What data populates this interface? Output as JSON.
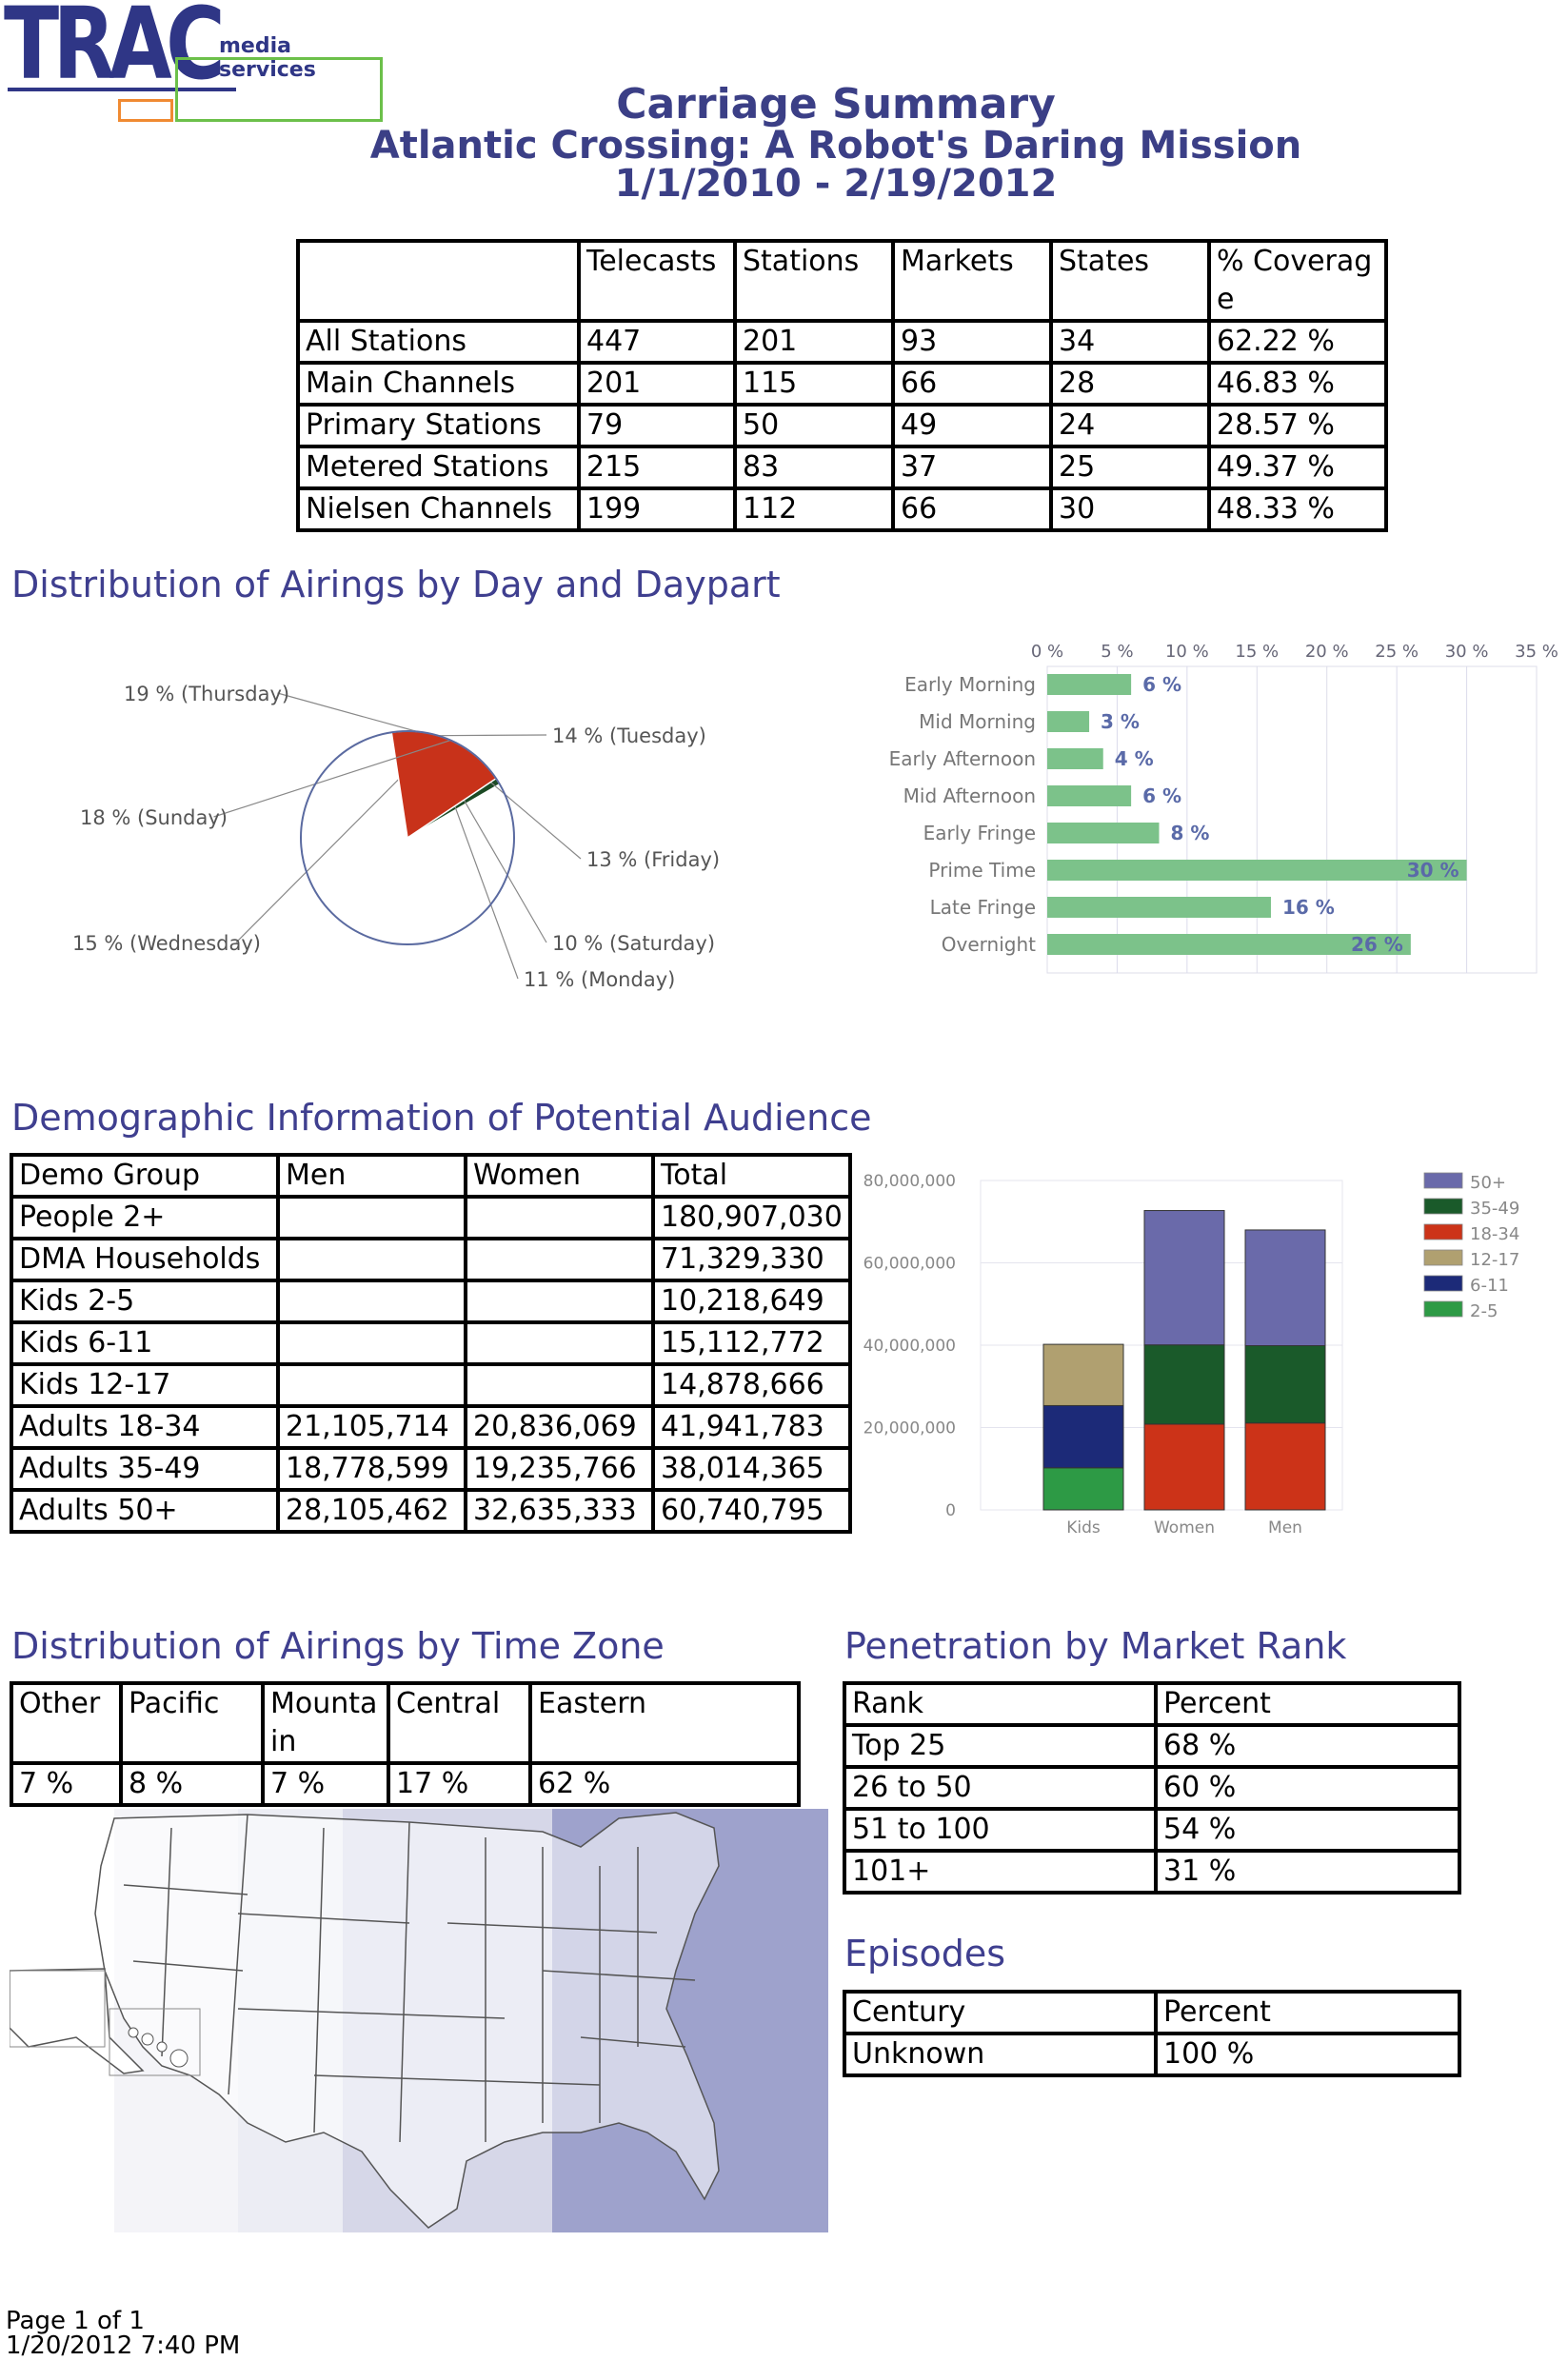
{
  "logo": {
    "brand": "TRAC",
    "subtitle": "media services"
  },
  "header": {
    "title": "Carriage Summary",
    "program": "Atlantic Crossing: A Robot's Daring Mission",
    "date_range": "1/1/2010 - 2/19/2012"
  },
  "carriage_table": {
    "columns": [
      "",
      "Telecasts",
      "Stations",
      "Markets",
      "States",
      "% Coverage"
    ],
    "rows": [
      [
        "All Stations",
        "447",
        "201",
        "93",
        "34",
        "62.22 %"
      ],
      [
        "Main Channels",
        "201",
        "115",
        "66",
        "28",
        "46.83 %"
      ],
      [
        "Primary Stations",
        "79",
        "50",
        "49",
        "24",
        "28.57 %"
      ],
      [
        "Metered Stations",
        "215",
        "83",
        "37",
        "25",
        "49.37 %"
      ],
      [
        "Nielsen Channels",
        "199",
        "112",
        "66",
        "30",
        "48.33 %"
      ]
    ]
  },
  "sections": {
    "daypart": "Distribution of Airings by Day and Daypart",
    "demo": "Demographic Information of Potential Audience",
    "timezone": "Distribution of Airings by Time Zone",
    "penetration": "Penetration by Market Rank",
    "episodes": "Episodes"
  },
  "chart_data": [
    {
      "type": "pie",
      "title": "Day",
      "labels": [
        "Thursday",
        "Tuesday",
        "Friday",
        "Saturday",
        "Monday",
        "Wednesday",
        "Sunday"
      ],
      "values": [
        19,
        14,
        13,
        10,
        11,
        15,
        18
      ],
      "label_text": [
        "19 % (Thursday)",
        "14 % (Tuesday)",
        "13 % (Friday)",
        "10 % (Saturday)",
        "11 % (Monday)",
        "15 % (Wednesday)",
        "18 % (Sunday)"
      ],
      "colors": [
        "#1b4a24",
        "#6e6eae",
        "#c8a800",
        "#3d9a49",
        "#1c2a6e",
        "#c4b38a",
        "#c8321a"
      ]
    },
    {
      "type": "bar",
      "orientation": "horizontal",
      "title": "Daypart",
      "categories": [
        "Early Morning",
        "Mid Morning",
        "Early Afternoon",
        "Mid Afternoon",
        "Early Fringe",
        "Prime Time",
        "Late Fringe",
        "Overnight"
      ],
      "values": [
        6,
        3,
        4,
        6,
        8,
        30,
        16,
        26
      ],
      "value_labels": [
        "6 %",
        "3 %",
        "4 %",
        "6 %",
        "8 %",
        "30 %",
        "16 %",
        "26 %"
      ],
      "xlim": [
        0,
        35
      ],
      "ticks": [
        "0 %",
        "5 %",
        "10 %",
        "15 %",
        "20 %",
        "25 %",
        "30 %",
        "35 %"
      ],
      "color": "#7cc28a"
    },
    {
      "type": "bar",
      "stacked": true,
      "title": "Demographics",
      "categories": [
        "Kids",
        "Women",
        "Men"
      ],
      "series": [
        {
          "name": "2-5",
          "values": [
            10218649,
            0,
            0
          ],
          "color": "#2d9a45"
        },
        {
          "name": "6-11",
          "values": [
            15112772,
            0,
            0
          ],
          "color": "#1c2a78"
        },
        {
          "name": "12-17",
          "values": [
            14878666,
            0,
            0
          ],
          "color": "#b0a070"
        },
        {
          "name": "18-34",
          "values": [
            0,
            20836069,
            21105714
          ],
          "color": "#cc3318"
        },
        {
          "name": "35-49",
          "values": [
            0,
            19235766,
            18778599
          ],
          "color": "#1a5a2a"
        },
        {
          "name": "50+",
          "values": [
            0,
            32635333,
            28105462
          ],
          "color": "#6a6aaa"
        }
      ],
      "legend": [
        "50+",
        "35-49",
        "18-34",
        "12-17",
        "6-11",
        "2-5"
      ],
      "ylim": [
        0,
        80000000
      ],
      "ticks": [
        "0",
        "20,000,000",
        "40,000,000",
        "60,000,000",
        "80,000,000"
      ]
    }
  ],
  "demo_table": {
    "columns": [
      "Demo Group",
      "Men",
      "Women",
      "Total"
    ],
    "rows": [
      [
        "People 2+",
        "",
        "",
        "180,907,030"
      ],
      [
        "DMA Households",
        "",
        "",
        "71,329,330"
      ],
      [
        "Kids 2-5",
        "",
        "",
        "10,218,649"
      ],
      [
        "Kids 6-11",
        "",
        "",
        "15,112,772"
      ],
      [
        "Kids 12-17",
        "",
        "",
        "14,878,666"
      ],
      [
        "Adults 18-34",
        "21,105,714",
        "20,836,069",
        "41,941,783"
      ],
      [
        "Adults 35-49",
        "18,778,599",
        "19,235,766",
        "38,014,365"
      ],
      [
        "Adults 50+",
        "28,105,462",
        "32,635,333",
        "60,740,795"
      ]
    ]
  },
  "timezone_table": {
    "columns": [
      "Other",
      "Pacific",
      "Mountain",
      "Central",
      "Eastern"
    ],
    "values": [
      "7 %",
      "8 %",
      "7 %",
      "17 %",
      "62 %"
    ]
  },
  "penetration_table": {
    "columns": [
      "Rank",
      "Percent"
    ],
    "rows": [
      [
        "Top 25",
        "68 %"
      ],
      [
        "26 to 50",
        "60 %"
      ],
      [
        "51 to 100",
        "54 %"
      ],
      [
        "101+",
        "31 %"
      ]
    ]
  },
  "episodes_table": {
    "columns": [
      "Century",
      "Percent"
    ],
    "rows": [
      [
        "Unknown",
        "100 %"
      ]
    ]
  },
  "footer": {
    "page": "Page 1 of 1",
    "printed": "1/20/2012 7:40 PM"
  }
}
